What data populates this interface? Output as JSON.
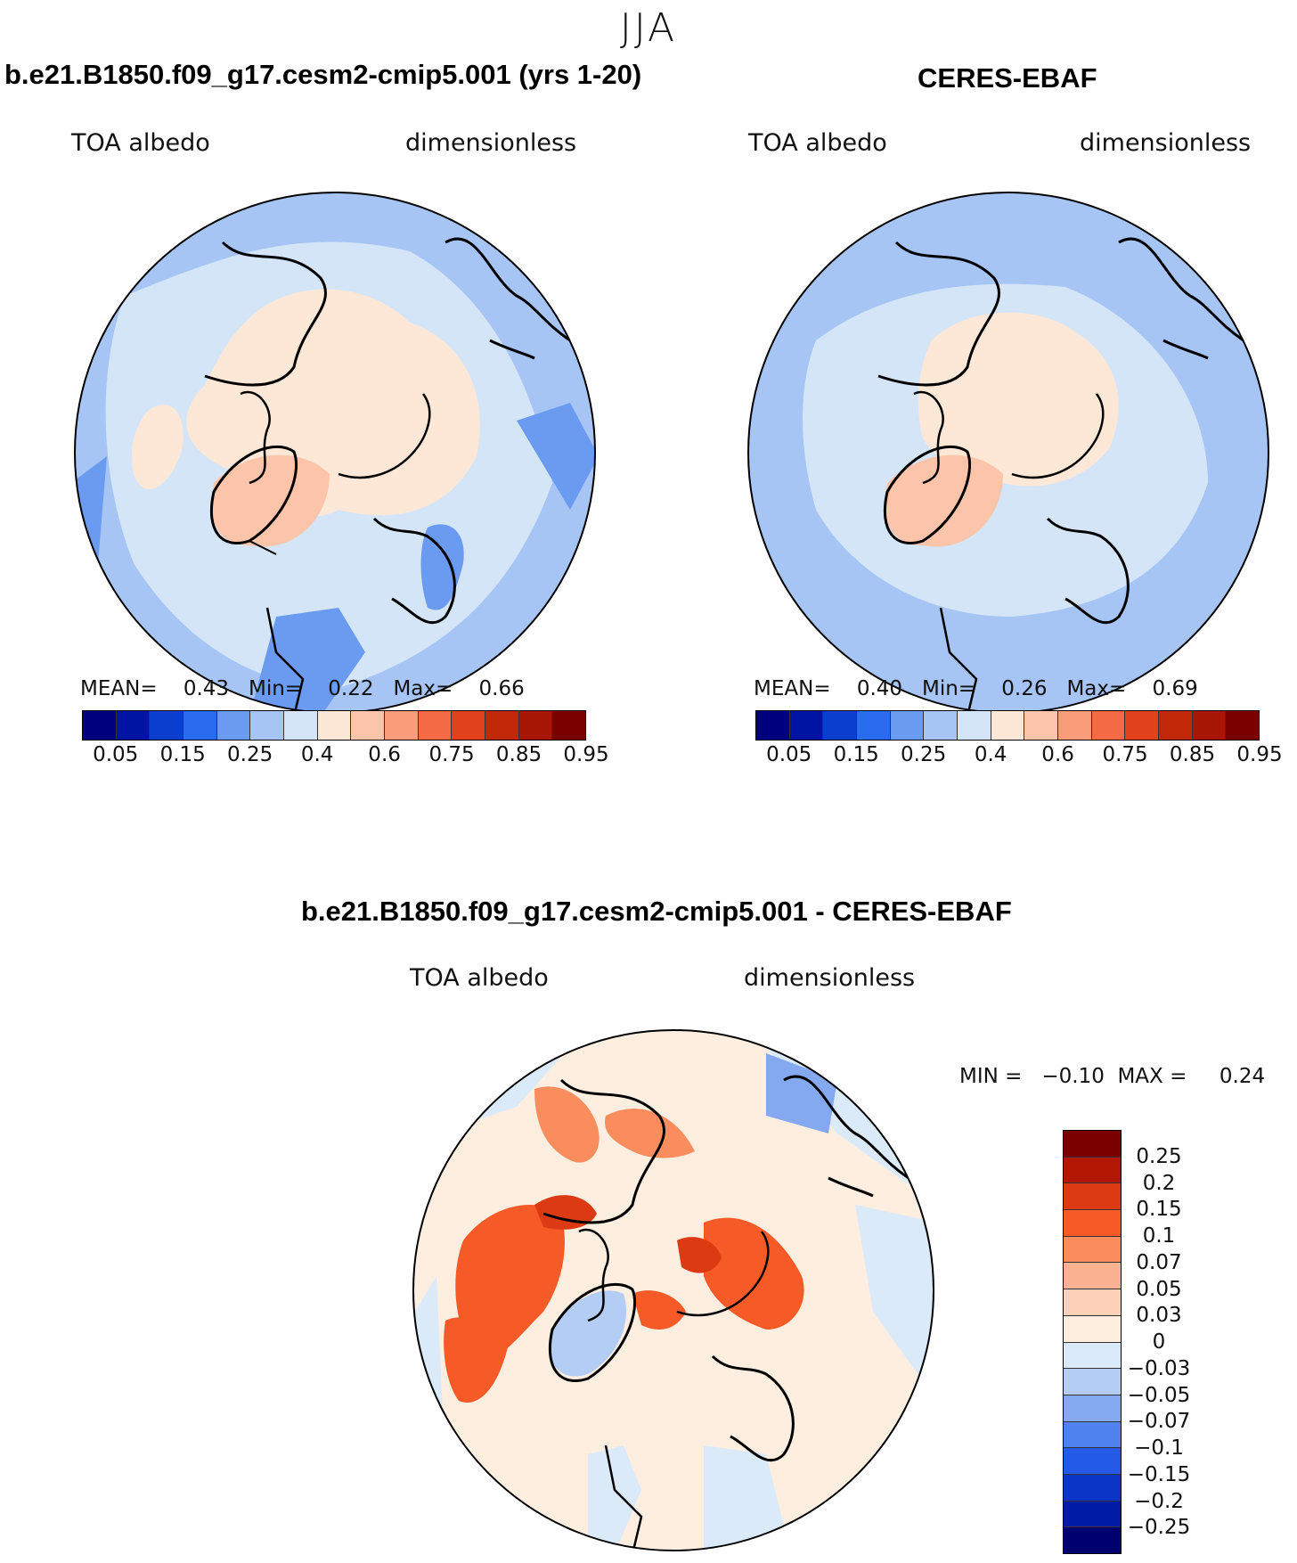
{
  "figure": {
    "season": "JJA"
  },
  "panel_model": {
    "title": "b.e21.B1850.f09_g17.cesm2-cmip5.001 (yrs 1-20)",
    "left_label": "TOA albedo",
    "right_label": "dimensionless",
    "stats": "MEAN=    0.43   Min=    0.22   Max=    0.66",
    "colorbar_ticks": [
      "0.05",
      "0.15",
      "0.25",
      "0.4",
      "0.6",
      "0.75",
      "0.85",
      "0.95"
    ]
  },
  "panel_obs": {
    "title": "CERES-EBAF",
    "left_label": "TOA albedo",
    "right_label": "dimensionless",
    "stats": "MEAN=    0.40   Min=    0.26   Max=    0.69",
    "colorbar_ticks": [
      "0.05",
      "0.15",
      "0.25",
      "0.4",
      "0.6",
      "0.75",
      "0.85",
      "0.95"
    ]
  },
  "panel_diff": {
    "title": "b.e21.B1850.f09_g17.cesm2-cmip5.001 - CERES-EBAF",
    "left_label": "TOA albedo",
    "right_label": "dimensionless",
    "stats": "MIN =   −0.10  MAX =     0.24",
    "colorbar_ticks": [
      "0.25",
      "0.2",
      "0.15",
      "0.1",
      "0.07",
      "0.05",
      "0.03",
      "0",
      "−0.03",
      "−0.05",
      "−0.07",
      "−0.1",
      "−0.15",
      "−0.2",
      "−0.25"
    ]
  },
  "colors": {
    "abs_scale": [
      "#00007f",
      "#0014a4",
      "#0a3fd0",
      "#2a6cf0",
      "#6a9bf0",
      "#a6c4f4",
      "#d4e5f8",
      "#fde8d8",
      "#fcc4a8",
      "#f99c7a",
      "#f36a44",
      "#e1411d",
      "#c02808",
      "#a81705",
      "#7a0000"
    ],
    "diff_scale": [
      "#7a0000",
      "#b31704",
      "#dc3a12",
      "#f65a26",
      "#f98d5e",
      "#fbb290",
      "#fdd0b8",
      "#fdeee0",
      "#dbeaf8",
      "#b4cdf4",
      "#84a9f0",
      "#4f82ee",
      "#235be6",
      "#0b35c4",
      "#011ca4",
      "#00006f"
    ]
  }
}
